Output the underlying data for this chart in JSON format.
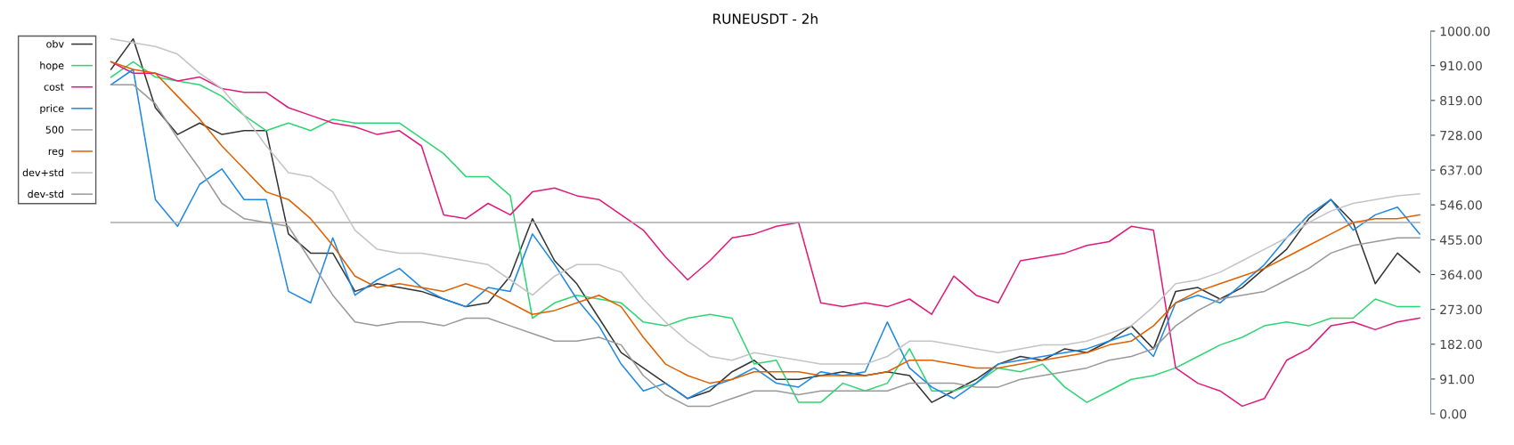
{
  "chart_data": {
    "type": "line",
    "title": "RUNEUSDT - 2h",
    "categories": [
      null,
      null,
      null,
      null,
      null,
      null,
      null,
      null,
      null,
      null,
      null,
      null,
      null,
      null,
      null,
      null,
      null,
      null,
      null,
      null,
      null,
      null,
      null,
      null,
      null,
      null,
      null,
      null,
      null,
      null,
      null,
      null,
      null,
      null,
      null,
      null,
      null,
      null,
      null,
      null,
      null,
      null,
      null,
      null,
      null,
      null,
      null,
      null,
      null,
      null,
      null,
      null,
      null,
      null,
      null,
      null,
      null,
      null,
      null,
      null
    ],
    "series": [
      {
        "name": "obv",
        "color": "#333333",
        "values": [
          900,
          980,
          800,
          730,
          760,
          730,
          740,
          740,
          470,
          420,
          420,
          320,
          340,
          330,
          320,
          300,
          280,
          290,
          360,
          510,
          400,
          340,
          250,
          160,
          120,
          80,
          40,
          60,
          110,
          140,
          90,
          90,
          100,
          110,
          100,
          110,
          100,
          30,
          60,
          90,
          130,
          150,
          140,
          170,
          160,
          190,
          230,
          170,
          320,
          330,
          300,
          330,
          380,
          430,
          510,
          560,
          500,
          340,
          420,
          370
        ]
      },
      {
        "name": "hope",
        "color": "#2ed573",
        "values": [
          880,
          920,
          880,
          870,
          860,
          830,
          780,
          740,
          760,
          740,
          770,
          760,
          760,
          760,
          720,
          680,
          620,
          620,
          570,
          250,
          290,
          310,
          300,
          290,
          240,
          230,
          250,
          260,
          250,
          130,
          140,
          30,
          30,
          80,
          60,
          80,
          170,
          60,
          60,
          80,
          120,
          110,
          130,
          70,
          30,
          60,
          90,
          100,
          120,
          150,
          180,
          200,
          230,
          240,
          230,
          250,
          250,
          300,
          280,
          280
        ]
      },
      {
        "name": "cost",
        "color": "#e0197a",
        "values": [
          920,
          890,
          890,
          870,
          880,
          850,
          840,
          840,
          800,
          780,
          760,
          750,
          730,
          740,
          700,
          520,
          510,
          550,
          520,
          580,
          590,
          570,
          560,
          520,
          480,
          410,
          350,
          400,
          460,
          470,
          490,
          500,
          290,
          280,
          290,
          280,
          300,
          260,
          360,
          310,
          290,
          400,
          410,
          420,
          440,
          450,
          490,
          480,
          120,
          80,
          60,
          20,
          40,
          140,
          170,
          230,
          240,
          220,
          240,
          250
        ]
      },
      {
        "name": "price",
        "color": "#1e88e5",
        "values": [
          860,
          900,
          560,
          490,
          600,
          640,
          560,
          560,
          320,
          290,
          460,
          310,
          350,
          380,
          330,
          300,
          280,
          330,
          320,
          470,
          390,
          300,
          230,
          130,
          60,
          80,
          40,
          70,
          90,
          120,
          80,
          70,
          110,
          100,
          110,
          240,
          120,
          70,
          40,
          80,
          130,
          140,
          150,
          160,
          170,
          190,
          210,
          150,
          290,
          310,
          290,
          340,
          390,
          460,
          520,
          560,
          480,
          520,
          540,
          470
        ]
      },
      {
        "name": "500",
        "color": "#aaaaaa",
        "values": [
          500,
          500,
          500,
          500,
          500,
          500,
          500,
          500,
          500,
          500,
          500,
          500,
          500,
          500,
          500,
          500,
          500,
          500,
          500,
          500,
          500,
          500,
          500,
          500,
          500,
          500,
          500,
          500,
          500,
          500,
          500,
          500,
          500,
          500,
          500,
          500,
          500,
          500,
          500,
          500,
          500,
          500,
          500,
          500,
          500,
          500,
          500,
          500,
          500,
          500,
          500,
          500,
          500,
          500,
          500,
          500,
          500,
          500,
          500,
          500
        ]
      },
      {
        "name": "reg",
        "color": "#e06000",
        "values": [
          920,
          900,
          890,
          830,
          770,
          700,
          640,
          580,
          560,
          510,
          440,
          360,
          330,
          340,
          330,
          320,
          340,
          320,
          290,
          260,
          270,
          290,
          310,
          280,
          200,
          130,
          100,
          80,
          90,
          110,
          110,
          110,
          100,
          100,
          100,
          110,
          140,
          140,
          130,
          120,
          120,
          130,
          140,
          150,
          160,
          180,
          190,
          230,
          290,
          320,
          340,
          360,
          380,
          410,
          440,
          470,
          500,
          510,
          510,
          520
        ]
      },
      {
        "name": "dev+std",
        "color": "#c4c4c4",
        "values": [
          980,
          970,
          960,
          940,
          890,
          850,
          780,
          700,
          630,
          620,
          580,
          480,
          430,
          420,
          420,
          410,
          400,
          390,
          350,
          310,
          360,
          390,
          390,
          370,
          300,
          240,
          190,
          150,
          140,
          160,
          150,
          140,
          130,
          130,
          130,
          150,
          190,
          190,
          180,
          170,
          160,
          170,
          180,
          180,
          190,
          210,
          230,
          280,
          340,
          350,
          370,
          400,
          430,
          460,
          500,
          530,
          550,
          560,
          570,
          575
        ]
      },
      {
        "name": "dev-std",
        "color": "#999999",
        "values": [
          860,
          860,
          810,
          720,
          640,
          550,
          510,
          500,
          490,
          400,
          310,
          240,
          230,
          240,
          240,
          230,
          250,
          250,
          230,
          210,
          190,
          190,
          200,
          180,
          100,
          50,
          20,
          20,
          40,
          60,
          60,
          50,
          60,
          60,
          60,
          60,
          80,
          80,
          80,
          70,
          70,
          90,
          100,
          110,
          120,
          140,
          150,
          170,
          230,
          270,
          300,
          310,
          320,
          350,
          380,
          420,
          440,
          450,
          460,
          460
        ]
      }
    ],
    "ylim": [
      0,
      1000
    ],
    "yticks": [
      {
        "value": 0,
        "label": "0.00"
      },
      {
        "value": 91,
        "label": "91.00"
      },
      {
        "value": 182,
        "label": "182.00"
      },
      {
        "value": 273,
        "label": "273.00"
      },
      {
        "value": 364,
        "label": "364.00"
      },
      {
        "value": 455,
        "label": "455.00"
      },
      {
        "value": 546,
        "label": "546.00"
      },
      {
        "value": 637,
        "label": "637.00"
      },
      {
        "value": 728,
        "label": "728.00"
      },
      {
        "value": 819,
        "label": "819.00"
      },
      {
        "value": 910,
        "label": "910.00"
      },
      {
        "value": 1000,
        "label": "1000.00"
      }
    ],
    "tick_labels": "y",
    "legend": "top left",
    "grid": false
  }
}
